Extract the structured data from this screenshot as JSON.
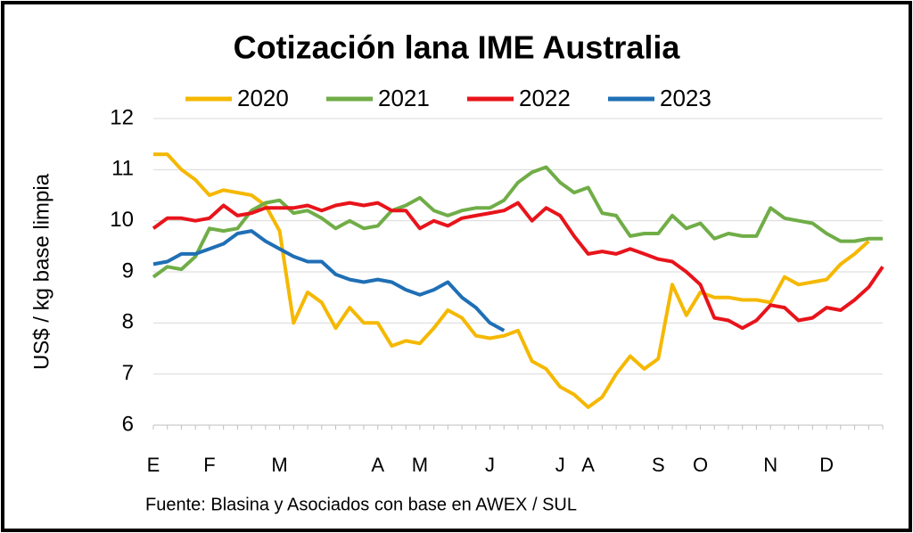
{
  "chart_data": {
    "type": "line",
    "title": "Cotización lana IME Australia",
    "y_label": "US$ / kg base limpia",
    "source": "Fuente: Blasina y Asociados con base en AWEX / SUL",
    "categories": [
      "E",
      null,
      null,
      null,
      "F",
      null,
      null,
      null,
      null,
      "M",
      null,
      null,
      null,
      null,
      null,
      null,
      "A",
      null,
      null,
      "M",
      null,
      null,
      null,
      null,
      "J",
      null,
      null,
      null,
      null,
      "J",
      null,
      "A",
      null,
      null,
      null,
      null,
      "S",
      null,
      null,
      "O",
      null,
      null,
      null,
      null,
      "N",
      null,
      null,
      null,
      "D",
      null,
      null,
      null,
      null
    ],
    "series": [
      {
        "name": "2020",
        "color": "#f5b800",
        "values": [
          11.3,
          11.3,
          11.0,
          10.8,
          10.5,
          10.6,
          10.55,
          10.5,
          10.3,
          9.8,
          8.0,
          8.6,
          8.4,
          7.9,
          8.3,
          8.0,
          8.0,
          7.55,
          7.65,
          7.6,
          7.9,
          8.25,
          8.1,
          7.75,
          7.7,
          7.75,
          7.85,
          7.25,
          7.1,
          6.75,
          6.6,
          6.35,
          6.55,
          7.0,
          7.35,
          7.1,
          7.3,
          8.75,
          8.15,
          8.6,
          8.5,
          8.5,
          8.45,
          8.45,
          8.4,
          8.9,
          8.75,
          8.8,
          8.85,
          9.15,
          9.35,
          9.6,
          null
        ]
      },
      {
        "name": "2021",
        "color": "#70ad47",
        "values": [
          8.9,
          9.1,
          9.05,
          9.3,
          9.85,
          9.8,
          9.85,
          10.2,
          10.35,
          10.4,
          10.15,
          10.2,
          10.05,
          9.85,
          10.0,
          9.85,
          9.9,
          10.2,
          10.3,
          10.45,
          10.2,
          10.1,
          10.2,
          10.25,
          10.25,
          10.4,
          10.75,
          10.95,
          11.05,
          10.75,
          10.55,
          10.65,
          10.15,
          10.1,
          9.7,
          9.75,
          9.75,
          10.1,
          9.85,
          9.95,
          9.65,
          9.75,
          9.7,
          9.7,
          10.25,
          10.05,
          10.0,
          9.95,
          9.75,
          9.6,
          9.6,
          9.65,
          9.65
        ]
      },
      {
        "name": "2022",
        "color": "#e8141b",
        "values": [
          9.85,
          10.05,
          10.05,
          10.0,
          10.05,
          10.3,
          10.1,
          10.15,
          10.25,
          10.25,
          10.25,
          10.3,
          10.2,
          10.3,
          10.35,
          10.3,
          10.35,
          10.2,
          10.2,
          9.85,
          10.0,
          9.9,
          10.05,
          10.1,
          10.15,
          10.2,
          10.35,
          10.0,
          10.25,
          10.1,
          9.7,
          9.35,
          9.4,
          9.35,
          9.45,
          9.35,
          9.25,
          9.2,
          9.0,
          8.75,
          8.1,
          8.05,
          7.9,
          8.05,
          8.35,
          8.3,
          8.05,
          8.1,
          8.3,
          8.25,
          8.45,
          8.7,
          9.1
        ]
      },
      {
        "name": "2023",
        "color": "#1f6fb5",
        "values": [
          9.15,
          9.2,
          9.35,
          9.35,
          9.45,
          9.55,
          9.75,
          9.8,
          9.6,
          9.45,
          9.3,
          9.2,
          9.2,
          8.95,
          8.85,
          8.8,
          8.85,
          8.8,
          8.65,
          8.55,
          8.65,
          8.8,
          8.5,
          8.3,
          8.0,
          7.85,
          null,
          null,
          null,
          null,
          null,
          null,
          null,
          null,
          null,
          null,
          null,
          null,
          null,
          null,
          null,
          null,
          null,
          null,
          null,
          null,
          null,
          null,
          null,
          null,
          null,
          null,
          null
        ]
      }
    ],
    "ylim": [
      6,
      12
    ],
    "yticks": [
      6,
      7,
      8,
      9,
      10,
      11,
      12
    ],
    "grid": true,
    "legend": "top"
  }
}
